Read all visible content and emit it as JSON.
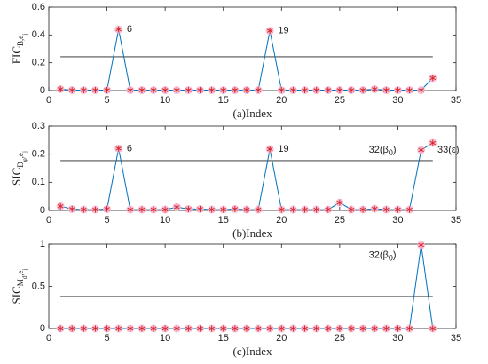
{
  "chart_data": [
    {
      "type": "line",
      "ylabel": [
        {
          "text": "FIC",
          "level": 0
        },
        {
          "text": "B,e",
          "level": 1
        },
        {
          "text": "j",
          "level": 2
        }
      ],
      "xlabel": "(a)Index",
      "x": [
        1,
        2,
        3,
        4,
        5,
        6,
        7,
        8,
        9,
        10,
        11,
        12,
        13,
        14,
        15,
        16,
        17,
        18,
        19,
        20,
        21,
        22,
        23,
        24,
        25,
        26,
        27,
        28,
        29,
        30,
        31,
        32,
        33
      ],
      "values": [
        0.01,
        0.003,
        0.003,
        0.003,
        0.003,
        0.44,
        0.003,
        0.003,
        0.003,
        0.003,
        0.003,
        0.003,
        0.003,
        0.003,
        0.003,
        0.003,
        0.003,
        0.003,
        0.43,
        0.003,
        0.003,
        0.003,
        0.003,
        0.003,
        0.003,
        0.003,
        0.003,
        0.01,
        0.003,
        0.003,
        0.003,
        0.003,
        0.09
      ],
      "threshold": 0.243,
      "color": "#0072bd",
      "marker_color": "#d62728",
      "halo_color": "#f7b3cf",
      "xlim": [
        0,
        35
      ],
      "xticks": [
        0,
        5,
        10,
        15,
        20,
        25,
        30,
        35
      ],
      "ylim": [
        0,
        0.6
      ],
      "yticks": [
        0,
        0.2,
        0.4,
        0.6
      ],
      "annotations": [
        [
          {
            "text": "6"
          }
        ],
        [
          {
            "text": "19"
          }
        ]
      ]
    },
    {
      "type": "line",
      "ylabel": [
        {
          "text": "SIC",
          "level": 0
        },
        {
          "text": "D",
          "level": 1
        },
        {
          "text": "φ",
          "level": 2
        },
        {
          "text": ",e",
          "level": 1
        },
        {
          "text": "j",
          "level": 2
        }
      ],
      "xlabel": "(b)Index",
      "x": [
        1,
        2,
        3,
        4,
        5,
        6,
        7,
        8,
        9,
        10,
        11,
        12,
        13,
        14,
        15,
        16,
        17,
        18,
        19,
        20,
        21,
        22,
        23,
        24,
        25,
        26,
        27,
        28,
        29,
        30,
        31,
        32,
        33
      ],
      "values": [
        0.015,
        0.005,
        0.003,
        0.003,
        0.005,
        0.22,
        0.003,
        0.003,
        0.003,
        0.003,
        0.012,
        0.005,
        0.005,
        0.003,
        0.003,
        0.005,
        0.003,
        0.003,
        0.218,
        0.003,
        0.003,
        0.003,
        0.003,
        0.003,
        0.028,
        0.003,
        0.003,
        0.006,
        0.003,
        0.003,
        0.003,
        0.215,
        0.24
      ],
      "threshold": 0.177,
      "color": "#0072bd",
      "marker_color": "#d62728",
      "halo_color": "#f7b3cf",
      "xlim": [
        0,
        35
      ],
      "xticks": [
        0,
        5,
        10,
        15,
        20,
        25,
        30,
        35
      ],
      "ylim": [
        0,
        0.3
      ],
      "yticks": [
        0,
        0.1,
        0.2,
        0.3
      ],
      "annotations": [
        [
          {
            "text": "6"
          }
        ],
        [
          {
            "text": "19"
          }
        ],
        [
          {
            "text": "32(β"
          },
          {
            "text": "0",
            "level": 1
          },
          {
            "text": ")"
          }
        ],
        [
          {
            "text": "33(ε)"
          }
        ]
      ]
    },
    {
      "type": "line",
      "ylabel": [
        {
          "text": "SIC",
          "level": 0
        },
        {
          "text": "M",
          "level": 1
        },
        {
          "text": "d",
          "level": 2
        },
        {
          "text": ",e",
          "level": 1
        },
        {
          "text": "j",
          "level": 2
        }
      ],
      "xlabel": "(c)Index",
      "x": [
        1,
        2,
        3,
        4,
        5,
        6,
        7,
        8,
        9,
        10,
        11,
        12,
        13,
        14,
        15,
        16,
        17,
        18,
        19,
        20,
        21,
        22,
        23,
        24,
        25,
        26,
        27,
        28,
        29,
        30,
        31,
        32,
        33
      ],
      "values": [
        0,
        0,
        0,
        0,
        0,
        0,
        0,
        0,
        0,
        0,
        0,
        0,
        0,
        0,
        0,
        0,
        0,
        0,
        0,
        0,
        0,
        0,
        0,
        0,
        0,
        0,
        0,
        0,
        0,
        0,
        0,
        0.99,
        0
      ],
      "threshold": 0.38,
      "color": "#0072bd",
      "marker_color": "#d62728",
      "halo_color": "#f7b3cf",
      "xlim": [
        0,
        35
      ],
      "xticks": [
        0,
        5,
        10,
        15,
        20,
        25,
        30,
        35
      ],
      "ylim": [
        0,
        1
      ],
      "yticks": [
        0,
        0.5,
        1
      ],
      "annotations": [
        [
          {
            "text": "32(β"
          },
          {
            "text": "0",
            "level": 1
          },
          {
            "text": ")"
          }
        ]
      ]
    }
  ]
}
